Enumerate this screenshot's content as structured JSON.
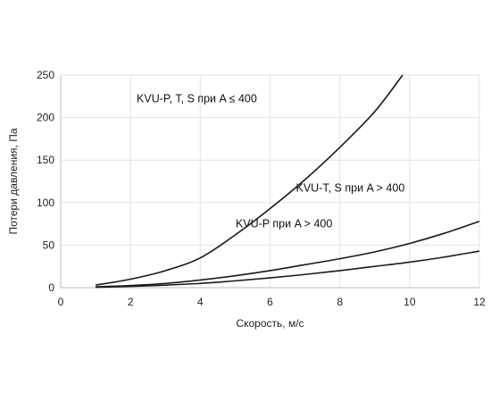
{
  "chart_data": {
    "type": "line",
    "title": "",
    "xlabel": "Скорость, м/с",
    "ylabel": "Потери давления, Па",
    "xlim": [
      0,
      12
    ],
    "ylim": [
      0,
      250
    ],
    "xticks": [
      0,
      2,
      4,
      6,
      8,
      10,
      12
    ],
    "yticks": [
      0,
      50,
      100,
      150,
      200,
      250
    ],
    "grid": true,
    "legend": "none",
    "series": [
      {
        "x": [
          1,
          2,
          3,
          4,
          5,
          6,
          7,
          8,
          9,
          9.8
        ],
        "y": [
          3,
          10,
          20,
          35,
          62,
          93,
          127,
          165,
          207,
          250
        ]
      },
      {
        "x": [
          1,
          2,
          3,
          4,
          5,
          6,
          7,
          8,
          9,
          10,
          11,
          12
        ],
        "y": [
          1,
          2.5,
          5,
          9,
          14,
          20,
          27,
          34,
          42,
          52,
          64,
          78
        ]
      },
      {
        "x": [
          1,
          2,
          3,
          4,
          5,
          6,
          7,
          8,
          9,
          10,
          11,
          12
        ],
        "y": [
          0.5,
          1.5,
          3,
          5,
          8,
          11.5,
          15.5,
          20,
          25,
          30,
          36,
          43
        ]
      }
    ],
    "annotations": [
      {
        "text": "KVU-P, T, S при A ≤ 400",
        "x": 3.9,
        "y": 218
      },
      {
        "text": "KVU-T, S при A > 400",
        "x": 8.3,
        "y": 113
      },
      {
        "text": "KVU-P при A > 400",
        "x": 6.4,
        "y": 71
      }
    ],
    "colors": {
      "line": "#1a1a1a",
      "grid": "#e3e3e3",
      "axis": "#bdbdbd"
    }
  }
}
